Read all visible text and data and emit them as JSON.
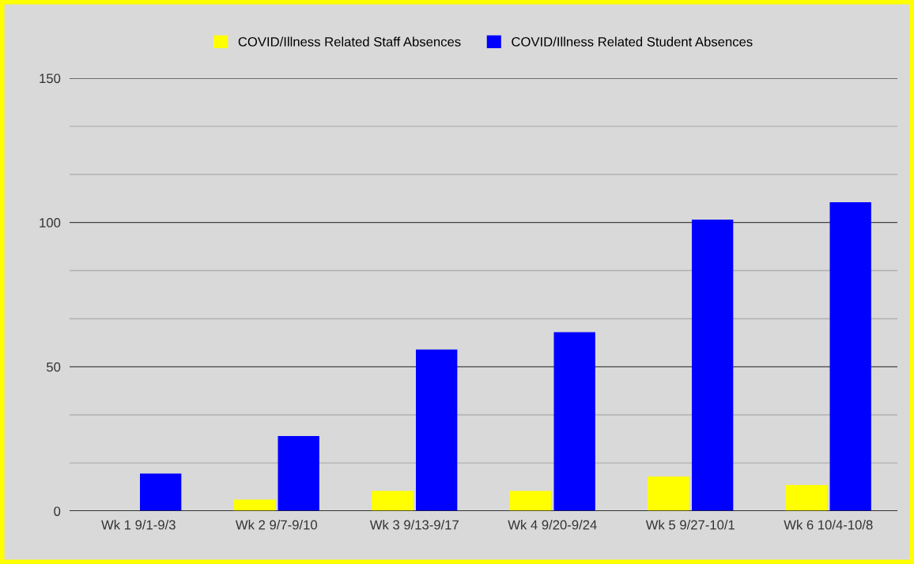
{
  "chart_data": {
    "type": "bar",
    "categories": [
      "Wk 1 9/1-9/3",
      "Wk 2 9/7-9/10",
      "Wk 3 9/13-9/17",
      "Wk 4 9/20-9/24",
      "Wk 5 9/27-10/1",
      "Wk 6 10/4-10/8"
    ],
    "series": [
      {
        "name": "COVID/Illness Related Staff Absences",
        "color": "#ffff00",
        "values": [
          0,
          4,
          7,
          7,
          12,
          9
        ]
      },
      {
        "name": "COVID/Illness Related Student Absences",
        "color": "#0000ff",
        "values": [
          13,
          26,
          56,
          62,
          101,
          107
        ]
      }
    ],
    "ylim": [
      0,
      150
    ],
    "yticks": [
      0,
      {
        "value": 16.67,
        "label": null
      },
      {
        "value": 33.33,
        "label": null
      },
      50,
      {
        "value": 66.67,
        "label": null
      },
      {
        "value": 83.33,
        "label": null
      },
      100,
      {
        "value": 116.67,
        "label": null
      },
      {
        "value": 133.33,
        "label": null
      },
      150
    ],
    "grid": "y",
    "legend": "top"
  }
}
